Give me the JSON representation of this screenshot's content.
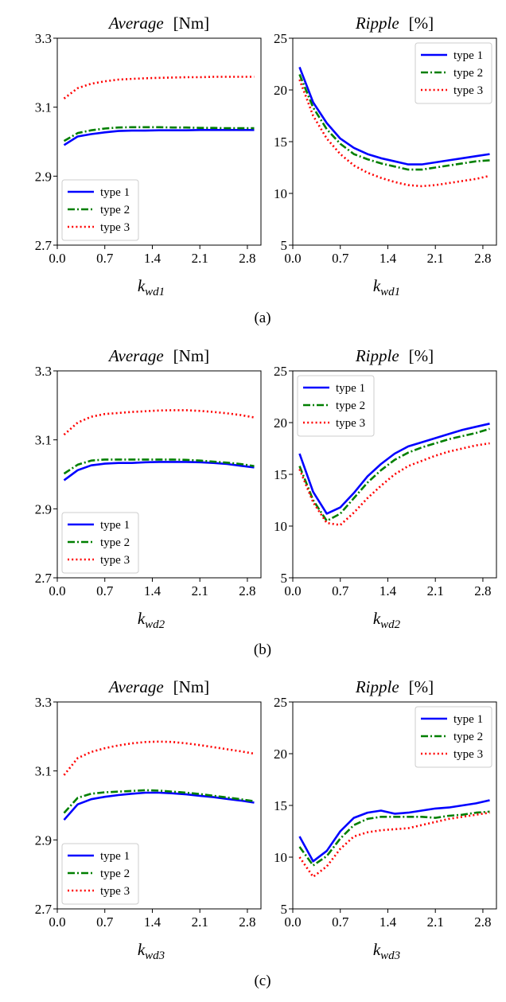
{
  "chart_data": [
    {
      "panel": "a",
      "type": "line",
      "title": "Average",
      "title_unit": "[Nm]",
      "xlabel": "k",
      "xlabel_sub": "wd1",
      "xlim": [
        0.0,
        3.0
      ],
      "ylim": [
        2.7,
        3.3
      ],
      "xticks": [
        "0.0",
        "0.7",
        "1.4",
        "2.1",
        "2.8"
      ],
      "yticks": [
        "2.7",
        "2.9",
        "3.1",
        "3.3"
      ],
      "legend": "lower-left",
      "grid": false,
      "x": [
        0.1,
        0.3,
        0.5,
        0.7,
        0.9,
        1.1,
        1.3,
        1.5,
        1.7,
        1.9,
        2.1,
        2.3,
        2.5,
        2.7,
        2.9
      ],
      "series": [
        {
          "name": "type 1",
          "color": "#0000ff",
          "style": "solid",
          "values": [
            2.99,
            3.015,
            3.022,
            3.027,
            3.031,
            3.032,
            3.032,
            3.033,
            3.033,
            3.033,
            3.034,
            3.034,
            3.034,
            3.034,
            3.034
          ]
        },
        {
          "name": "type 2",
          "color": "#007f00",
          "style": "dashdot",
          "values": [
            3.002,
            3.025,
            3.033,
            3.038,
            3.041,
            3.042,
            3.042,
            3.042,
            3.041,
            3.041,
            3.04,
            3.04,
            3.039,
            3.039,
            3.039
          ]
        },
        {
          "name": "type 3",
          "color": "#ff0000",
          "style": "dotted",
          "values": [
            3.125,
            3.155,
            3.168,
            3.175,
            3.18,
            3.182,
            3.184,
            3.185,
            3.186,
            3.187,
            3.187,
            3.188,
            3.188,
            3.188,
            3.188
          ]
        }
      ]
    },
    {
      "panel": "a",
      "type": "line",
      "title": "Ripple",
      "title_unit": "[%]",
      "xlabel": "k",
      "xlabel_sub": "wd1",
      "xlim": [
        0.0,
        3.0
      ],
      "ylim": [
        5,
        25
      ],
      "xticks": [
        "0.0",
        "0.7",
        "1.4",
        "2.1",
        "2.8"
      ],
      "yticks": [
        "5",
        "10",
        "15",
        "20",
        "25"
      ],
      "legend": "upper-right",
      "grid": false,
      "x": [
        0.1,
        0.3,
        0.5,
        0.7,
        0.9,
        1.1,
        1.3,
        1.5,
        1.7,
        1.9,
        2.1,
        2.3,
        2.5,
        2.7,
        2.9
      ],
      "series": [
        {
          "name": "type 1",
          "color": "#0000ff",
          "style": "solid",
          "values": [
            22.2,
            18.8,
            16.8,
            15.3,
            14.4,
            13.8,
            13.4,
            13.1,
            12.8,
            12.8,
            13.0,
            13.2,
            13.4,
            13.6,
            13.8
          ]
        },
        {
          "name": "type 2",
          "color": "#007f00",
          "style": "dashdot",
          "values": [
            21.5,
            18.3,
            16.2,
            14.8,
            13.8,
            13.3,
            12.9,
            12.6,
            12.3,
            12.3,
            12.5,
            12.7,
            12.9,
            13.1,
            13.2
          ]
        },
        {
          "name": "type 3",
          "color": "#ff0000",
          "style": "dotted",
          "values": [
            21.0,
            17.5,
            15.3,
            13.8,
            12.7,
            12.0,
            11.5,
            11.1,
            10.8,
            10.7,
            10.8,
            11.0,
            11.2,
            11.4,
            11.7
          ]
        }
      ]
    },
    {
      "panel": "b",
      "type": "line",
      "title": "Average",
      "title_unit": "[Nm]",
      "xlabel": "k",
      "xlabel_sub": "wd2",
      "xlim": [
        0.0,
        3.0
      ],
      "ylim": [
        2.7,
        3.3
      ],
      "xticks": [
        "0.0",
        "0.7",
        "1.4",
        "2.1",
        "2.8"
      ],
      "yticks": [
        "2.7",
        "2.9",
        "3.1",
        "3.3"
      ],
      "legend": "lower-left",
      "grid": false,
      "x": [
        0.1,
        0.3,
        0.5,
        0.7,
        0.9,
        1.1,
        1.3,
        1.5,
        1.7,
        1.9,
        2.1,
        2.3,
        2.5,
        2.7,
        2.9
      ],
      "series": [
        {
          "name": "type 1",
          "color": "#0000ff",
          "style": "solid",
          "values": [
            2.983,
            3.012,
            3.026,
            3.031,
            3.033,
            3.033,
            3.035,
            3.036,
            3.036,
            3.036,
            3.035,
            3.033,
            3.03,
            3.025,
            3.02
          ]
        },
        {
          "name": "type 2",
          "color": "#007f00",
          "style": "dashdot",
          "values": [
            3.002,
            3.028,
            3.04,
            3.043,
            3.043,
            3.043,
            3.043,
            3.043,
            3.043,
            3.042,
            3.04,
            3.037,
            3.034,
            3.03,
            3.024
          ]
        },
        {
          "name": "type 3",
          "color": "#ff0000",
          "style": "dotted",
          "values": [
            3.115,
            3.15,
            3.167,
            3.175,
            3.178,
            3.181,
            3.183,
            3.185,
            3.186,
            3.186,
            3.184,
            3.181,
            3.177,
            3.172,
            3.165
          ]
        }
      ]
    },
    {
      "panel": "b",
      "type": "line",
      "title": "Ripple",
      "title_unit": "[%]",
      "xlabel": "k",
      "xlabel_sub": "wd2",
      "xlim": [
        0.0,
        3.0
      ],
      "ylim": [
        5,
        25
      ],
      "xticks": [
        "0.0",
        "0.7",
        "1.4",
        "2.1",
        "2.8"
      ],
      "yticks": [
        "5",
        "10",
        "15",
        "20",
        "25"
      ],
      "legend": "upper-left",
      "grid": false,
      "x": [
        0.1,
        0.3,
        0.5,
        0.7,
        0.9,
        1.1,
        1.3,
        1.5,
        1.7,
        1.9,
        2.1,
        2.3,
        2.5,
        2.7,
        2.9
      ],
      "series": [
        {
          "name": "type 1",
          "color": "#0000ff",
          "style": "solid",
          "values": [
            17.0,
            13.3,
            11.2,
            11.8,
            13.2,
            14.8,
            16.0,
            17.0,
            17.7,
            18.1,
            18.5,
            18.9,
            19.3,
            19.6,
            19.9
          ]
        },
        {
          "name": "type 2",
          "color": "#007f00",
          "style": "dashdot",
          "values": [
            15.8,
            12.5,
            10.5,
            11.2,
            12.7,
            14.2,
            15.4,
            16.4,
            17.1,
            17.6,
            18.0,
            18.4,
            18.7,
            19.0,
            19.4
          ]
        },
        {
          "name": "type 3",
          "color": "#ff0000",
          "style": "dotted",
          "values": [
            15.5,
            12.3,
            10.3,
            10.1,
            11.3,
            12.7,
            13.9,
            15.0,
            15.8,
            16.3,
            16.8,
            17.2,
            17.5,
            17.8,
            18.0
          ]
        }
      ]
    },
    {
      "panel": "c",
      "type": "line",
      "title": "Average",
      "title_unit": "[Nm]",
      "xlabel": "k",
      "xlabel_sub": "wd3",
      "xlim": [
        0.0,
        3.0
      ],
      "ylim": [
        2.7,
        3.3
      ],
      "xticks": [
        "0.0",
        "0.7",
        "1.4",
        "2.1",
        "2.8"
      ],
      "yticks": [
        "2.7",
        "2.9",
        "3.1",
        "3.3"
      ],
      "legend": "lower-left",
      "grid": false,
      "x": [
        0.1,
        0.3,
        0.5,
        0.7,
        0.9,
        1.1,
        1.3,
        1.5,
        1.7,
        1.9,
        2.1,
        2.3,
        2.5,
        2.7,
        2.9
      ],
      "series": [
        {
          "name": "type 1",
          "color": "#0000ff",
          "style": "solid",
          "values": [
            2.958,
            3.003,
            3.018,
            3.025,
            3.03,
            3.034,
            3.037,
            3.037,
            3.035,
            3.032,
            3.028,
            3.024,
            3.019,
            3.014,
            3.008
          ]
        },
        {
          "name": "type 2",
          "color": "#007f00",
          "style": "dashdot",
          "values": [
            2.978,
            3.022,
            3.034,
            3.038,
            3.04,
            3.042,
            3.044,
            3.043,
            3.04,
            3.037,
            3.033,
            3.028,
            3.023,
            3.018,
            3.012
          ]
        },
        {
          "name": "type 3",
          "color": "#ff0000",
          "style": "dotted",
          "values": [
            3.088,
            3.137,
            3.155,
            3.166,
            3.174,
            3.18,
            3.184,
            3.185,
            3.184,
            3.18,
            3.175,
            3.169,
            3.163,
            3.157,
            3.15
          ]
        }
      ]
    },
    {
      "panel": "c",
      "type": "line",
      "title": "Ripple",
      "title_unit": "[%]",
      "xlabel": "k",
      "xlabel_sub": "wd3",
      "xlim": [
        0.0,
        3.0
      ],
      "ylim": [
        5,
        25
      ],
      "xticks": [
        "0.0",
        "0.7",
        "1.4",
        "2.1",
        "2.8"
      ],
      "yticks": [
        "5",
        "10",
        "15",
        "20",
        "25"
      ],
      "legend": "upper-right",
      "grid": false,
      "x": [
        0.1,
        0.3,
        0.5,
        0.7,
        0.9,
        1.1,
        1.3,
        1.5,
        1.7,
        1.9,
        2.1,
        2.3,
        2.5,
        2.7,
        2.9
      ],
      "series": [
        {
          "name": "type 1",
          "color": "#0000ff",
          "style": "solid",
          "values": [
            12.0,
            9.6,
            10.6,
            12.5,
            13.8,
            14.3,
            14.5,
            14.2,
            14.3,
            14.5,
            14.7,
            14.8,
            15.0,
            15.2,
            15.5
          ]
        },
        {
          "name": "type 2",
          "color": "#007f00",
          "style": "dashdot",
          "values": [
            11.0,
            9.2,
            10.1,
            11.8,
            13.1,
            13.7,
            13.9,
            13.9,
            13.9,
            13.9,
            13.8,
            14.0,
            14.1,
            14.3,
            14.4
          ]
        },
        {
          "name": "type 3",
          "color": "#ff0000",
          "style": "dotted",
          "values": [
            10.0,
            8.1,
            9.1,
            10.8,
            12.0,
            12.4,
            12.6,
            12.7,
            12.8,
            13.1,
            13.4,
            13.7,
            13.9,
            14.1,
            14.3
          ]
        }
      ]
    }
  ],
  "panel_labels": [
    "(a)",
    "(b)",
    "(c)"
  ]
}
